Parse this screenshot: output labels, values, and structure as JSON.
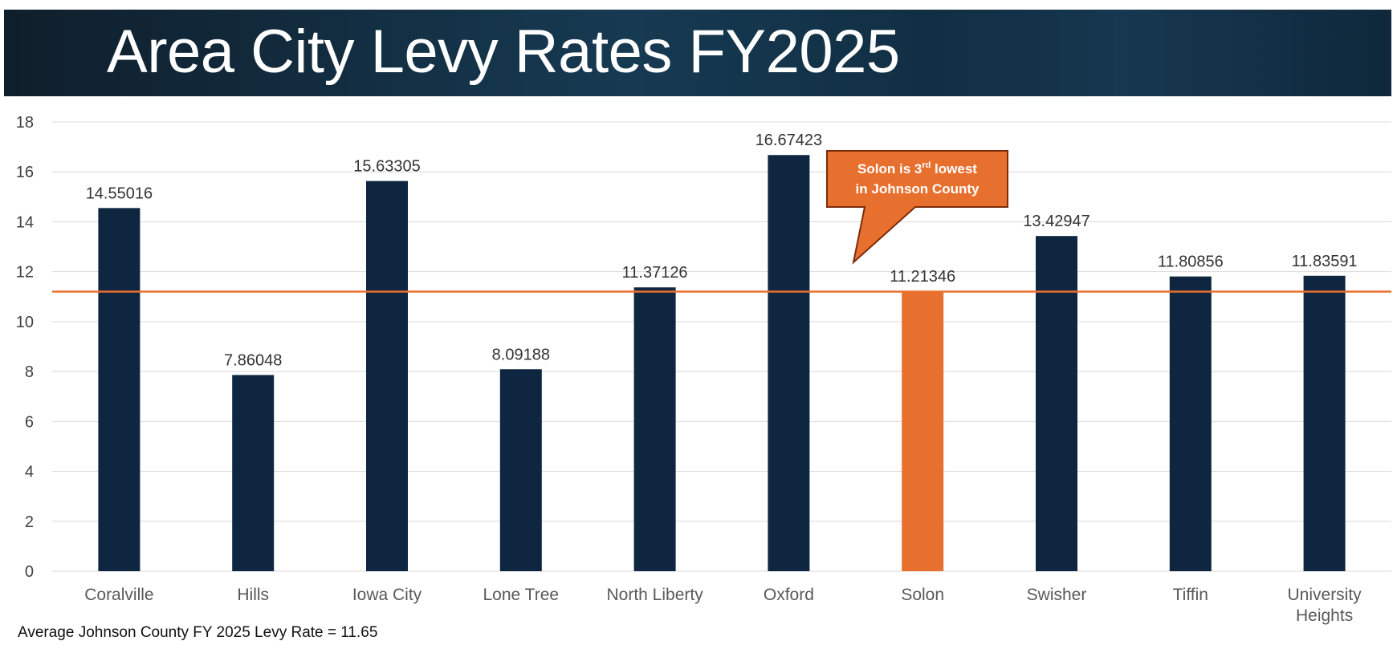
{
  "header": {
    "title": "Area City Levy Rates FY2025"
  },
  "footnote": "Average Johnson County FY 2025 Levy Rate = 11.65",
  "colors": {
    "bar": "#0e2640",
    "highlight": "#e8702f",
    "reference_line": "#e8702f",
    "grid": "#d9d9d9",
    "axis_text": "#404040",
    "callout_border": "#7a2d0a"
  },
  "chart_data": {
    "type": "bar",
    "categories": [
      "Coralville",
      "Hills",
      "Iowa City",
      "Lone Tree",
      "North Liberty",
      "Oxford",
      "Solon",
      "Swisher",
      "Tiffin",
      "University Heights"
    ],
    "values": [
      14.55016,
      7.86048,
      15.63305,
      8.09188,
      11.37126,
      16.67423,
      11.21346,
      13.42947,
      11.80856,
      11.83591
    ],
    "data_labels": [
      "14.55016",
      "7.86048",
      "15.63305",
      "8.09188",
      "11.37126",
      "16.67423",
      "11.21346",
      "13.42947",
      "11.80856",
      "11.83591"
    ],
    "highlight_category": "Solon",
    "reference_line": {
      "value": 11.2
    },
    "ylim": [
      0,
      18
    ],
    "yticks": [
      0,
      2,
      4,
      6,
      8,
      10,
      12,
      14,
      16,
      18
    ],
    "grid": true,
    "legend": "none",
    "annotation": {
      "line1_pre": "Solon is 3",
      "line1_sup": "rd",
      "line1_post": " lowest",
      "line2": "in Johnson County"
    }
  }
}
